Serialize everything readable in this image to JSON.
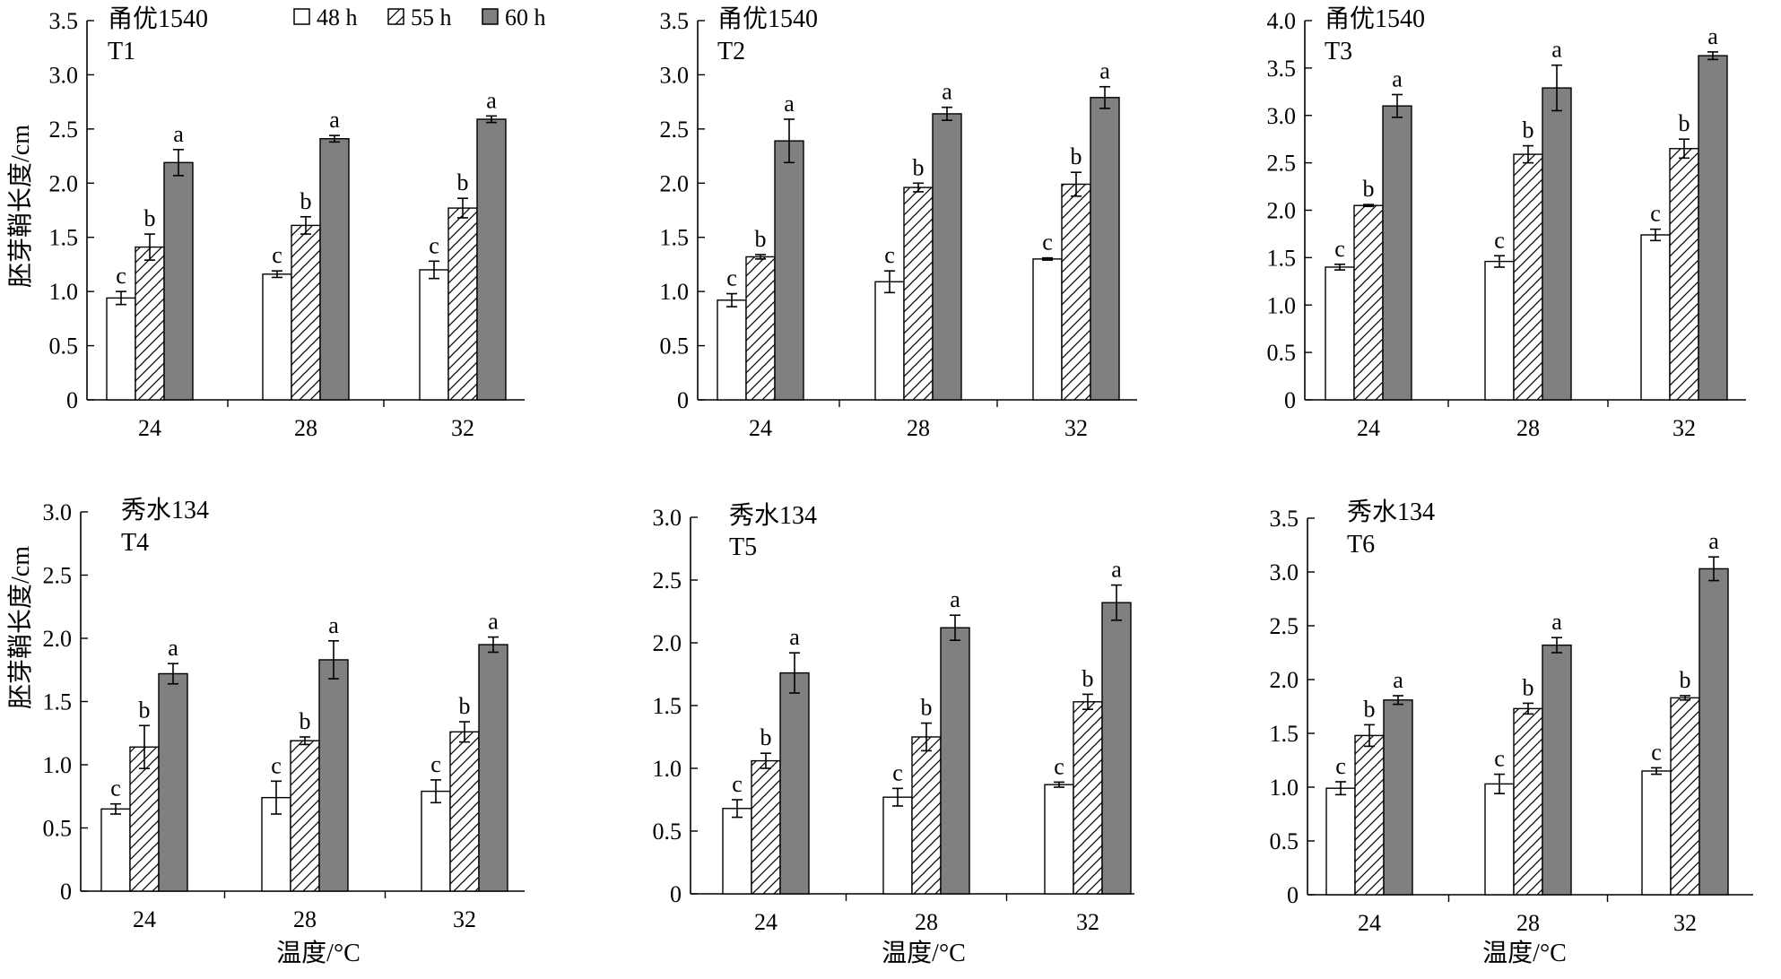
{
  "figure": {
    "ylabel": "胚芽鞘长度/cm",
    "xlabel": "温度/°C"
  },
  "legend": {
    "items": [
      {
        "label": "48 h",
        "pattern": "white"
      },
      {
        "label": "55 h",
        "pattern": "hatch"
      },
      {
        "label": "60 h",
        "pattern": "gray"
      }
    ]
  },
  "colors": {
    "bar_48h": "#ffffff",
    "bar_55h_hatch": "#000000",
    "bar_60h": "#808083",
    "axis": "#000000"
  },
  "chart_data": [
    {
      "type": "bar",
      "cultivar": "甬优1540",
      "treatment": "T1",
      "categories": [
        "24",
        "28",
        "32"
      ],
      "ylim": [
        0,
        3.5
      ],
      "yticks": [
        "0",
        "0.5",
        "1.0",
        "1.5",
        "2.0",
        "2.5",
        "3.0",
        "3.5"
      ],
      "series": [
        {
          "name": "48 h",
          "values": [
            0.94,
            1.16,
            1.2
          ],
          "errors": [
            0.06,
            0.03,
            0.08
          ],
          "letters": [
            "c",
            "c",
            "c"
          ]
        },
        {
          "name": "55 h",
          "values": [
            1.41,
            1.61,
            1.77
          ],
          "errors": [
            0.12,
            0.08,
            0.09
          ],
          "letters": [
            "b",
            "b",
            "b"
          ]
        },
        {
          "name": "60 h",
          "values": [
            2.19,
            2.41,
            2.59
          ],
          "errors": [
            0.12,
            0.03,
            0.03
          ],
          "letters": [
            "a",
            "a",
            "a"
          ]
        }
      ]
    },
    {
      "type": "bar",
      "cultivar": "甬优1540",
      "treatment": "T2",
      "categories": [
        "24",
        "28",
        "32"
      ],
      "ylim": [
        0,
        3.5
      ],
      "yticks": [
        "0",
        "0.5",
        "1.0",
        "1.5",
        "2.0",
        "2.5",
        "3.0",
        "3.5"
      ],
      "series": [
        {
          "name": "48 h",
          "values": [
            0.92,
            1.09,
            1.3
          ],
          "errors": [
            0.06,
            0.1,
            0.01
          ],
          "letters": [
            "c",
            "c",
            "c"
          ]
        },
        {
          "name": "55 h",
          "values": [
            1.32,
            1.96,
            1.99
          ],
          "errors": [
            0.02,
            0.04,
            0.11
          ],
          "letters": [
            "b",
            "b",
            "b"
          ]
        },
        {
          "name": "60 h",
          "values": [
            2.39,
            2.64,
            2.79
          ],
          "errors": [
            0.2,
            0.06,
            0.1
          ],
          "letters": [
            "a",
            "a",
            "a"
          ]
        }
      ]
    },
    {
      "type": "bar",
      "cultivar": "甬优1540",
      "treatment": "T3",
      "categories": [
        "24",
        "28",
        "32"
      ],
      "ylim": [
        0,
        4.0
      ],
      "yticks": [
        "0",
        "0.5",
        "1.0",
        "1.5",
        "2.0",
        "2.5",
        "3.0",
        "3.5",
        "4.0"
      ],
      "series": [
        {
          "name": "48 h",
          "values": [
            1.4,
            1.46,
            1.74
          ],
          "errors": [
            0.03,
            0.06,
            0.06
          ],
          "letters": [
            "c",
            "c",
            "c"
          ]
        },
        {
          "name": "55 h",
          "values": [
            2.05,
            2.59,
            2.65
          ],
          "errors": [
            0.01,
            0.09,
            0.1
          ],
          "letters": [
            "b",
            "b",
            "b"
          ]
        },
        {
          "name": "60 h",
          "values": [
            3.1,
            3.29,
            3.63
          ],
          "errors": [
            0.12,
            0.24,
            0.04
          ],
          "letters": [
            "a",
            "a",
            "a"
          ]
        }
      ]
    },
    {
      "type": "bar",
      "cultivar": "秀水134",
      "treatment": "T4",
      "categories": [
        "24",
        "28",
        "32"
      ],
      "ylim": [
        0,
        3.0
      ],
      "yticks": [
        "0",
        "0.5",
        "1.0",
        "1.5",
        "2.0",
        "2.5",
        "3.0"
      ],
      "series": [
        {
          "name": "48 h",
          "values": [
            0.65,
            0.74,
            0.79
          ],
          "errors": [
            0.04,
            0.13,
            0.09
          ],
          "letters": [
            "c",
            "c",
            "c"
          ]
        },
        {
          "name": "55 h",
          "values": [
            1.14,
            1.19,
            1.26
          ],
          "errors": [
            0.17,
            0.03,
            0.08
          ],
          "letters": [
            "b",
            "b",
            "b"
          ]
        },
        {
          "name": "60 h",
          "values": [
            1.72,
            1.83,
            1.95
          ],
          "errors": [
            0.08,
            0.15,
            0.06
          ],
          "letters": [
            "a",
            "a",
            "a"
          ]
        }
      ]
    },
    {
      "type": "bar",
      "cultivar": "秀水134",
      "treatment": "T5",
      "categories": [
        "24",
        "28",
        "32"
      ],
      "ylim": [
        0,
        3.0
      ],
      "yticks": [
        "0",
        "0.5",
        "1.0",
        "1.5",
        "2.0",
        "2.5",
        "3.0"
      ],
      "series": [
        {
          "name": "48 h",
          "values": [
            0.68,
            0.77,
            0.87
          ],
          "errors": [
            0.07,
            0.07,
            0.02
          ],
          "letters": [
            "c",
            "c",
            "c"
          ]
        },
        {
          "name": "55 h",
          "values": [
            1.06,
            1.25,
            1.53
          ],
          "errors": [
            0.06,
            0.11,
            0.06
          ],
          "letters": [
            "b",
            "b",
            "b"
          ]
        },
        {
          "name": "60 h",
          "values": [
            1.76,
            2.12,
            2.32
          ],
          "errors": [
            0.16,
            0.1,
            0.14
          ],
          "letters": [
            "a",
            "a",
            "a"
          ]
        }
      ]
    },
    {
      "type": "bar",
      "cultivar": "秀水134",
      "treatment": "T6",
      "categories": [
        "24",
        "28",
        "32"
      ],
      "ylim": [
        0,
        3.5
      ],
      "yticks": [
        "0",
        "0.5",
        "1.0",
        "1.5",
        "2.0",
        "2.5",
        "3.0",
        "3.5"
      ],
      "series": [
        {
          "name": "48 h",
          "values": [
            0.99,
            1.03,
            1.15
          ],
          "errors": [
            0.06,
            0.09,
            0.03
          ],
          "letters": [
            "c",
            "c",
            "c"
          ]
        },
        {
          "name": "55 h",
          "values": [
            1.48,
            1.73,
            1.83
          ],
          "errors": [
            0.1,
            0.05,
            0.02
          ],
          "letters": [
            "b",
            "b",
            "b"
          ]
        },
        {
          "name": "60 h",
          "values": [
            1.81,
            2.32,
            3.03
          ],
          "errors": [
            0.04,
            0.07,
            0.11
          ],
          "letters": [
            "a",
            "a",
            "a"
          ]
        }
      ]
    }
  ]
}
